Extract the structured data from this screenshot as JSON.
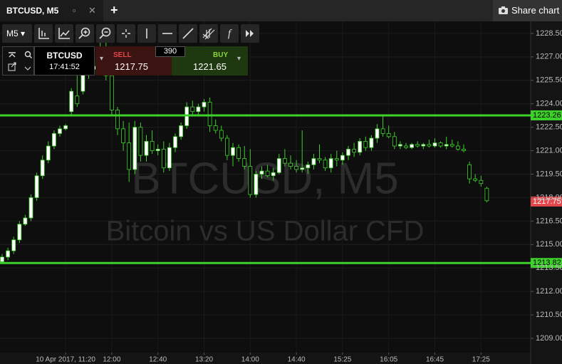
{
  "ui": {
    "tab": "BTCUSD, M5",
    "share": "Share chart",
    "timeframe": "M5",
    "trade": {
      "symbol": "BTCUSD",
      "time": "17:41:52",
      "sell_label": "SELL",
      "sell_price": 1217.75,
      "spread": 390,
      "buy_label": "BUY",
      "buy_price": 1221.65
    }
  },
  "chart_data": {
    "type": "candlestick",
    "watermark": "BTCUSD, M5",
    "watermark_subtitle": "Bitcoin vs US Dollar CFD",
    "categories": [
      null,
      null,
      null,
      null,
      null,
      null,
      null,
      null,
      null,
      null,
      null,
      "10 Apr 2017, 11:20",
      null,
      null,
      null,
      null,
      null,
      null,
      null,
      "12:00",
      null,
      null,
      null,
      null,
      null,
      null,
      null,
      "12:40",
      null,
      null,
      null,
      null,
      null,
      null,
      null,
      "13:20",
      null,
      null,
      null,
      null,
      null,
      null,
      null,
      "14:00",
      null,
      null,
      null,
      null,
      null,
      null,
      null,
      "14:40",
      null,
      null,
      null,
      null,
      null,
      null,
      null,
      "15:25",
      null,
      null,
      null,
      null,
      null,
      null,
      null,
      "16:05",
      null,
      null,
      null,
      null,
      null,
      null,
      null,
      "16:45",
      null,
      null,
      null,
      null,
      null,
      null,
      null,
      "17:25",
      null
    ],
    "open": [
      1213.9,
      1214.2,
      1214.6,
      1215.3,
      1216.3,
      1216.7,
      1218.0,
      1219.4,
      1220.4,
      1221.3,
      1222.1,
      1222.4,
      1223.5,
      1224.5,
      1224.8,
      1225.9,
      1226.2,
      1226.4,
      1227.5,
      1225.8,
      1223.6,
      1222.4,
      1221.5,
      1219.8,
      1222.5,
      1220.7,
      1221.6,
      1221.0,
      1221.1,
      1219.9,
      1221.2,
      1221.9,
      1222.6,
      1223.8,
      1223.5,
      1223.8,
      1224.1,
      1222.6,
      1222.3,
      1221.8,
      1220.7,
      1221.2,
      1220.5,
      1220.0,
      1218.2,
      1219.5,
      1219.7,
      1219.4,
      1219.6,
      1220.5,
      1220.2,
      1220.0,
      1219.8,
      1219.9,
      1220.1,
      1220.5,
      1220.4,
      1219.9,
      1220.5,
      1220.4,
      1220.7,
      1221.1,
      1220.9,
      1221.6,
      1221.2,
      1221.8,
      1222.4,
      1222.1,
      1221.9,
      1221.3,
      1221.3,
      1221.2,
      1221.4,
      1221.3,
      1221.4,
      1221.3,
      1221.5,
      1221.3,
      1221.4,
      1221.3,
      1221.1,
      1220.1,
      1219.2,
      1219.1,
      1218.6
    ],
    "high": [
      1214.4,
      1214.8,
      1215.5,
      1216.5,
      1216.9,
      1218.2,
      1219.6,
      1220.7,
      1221.6,
      1222.3,
      1222.6,
      1222.7,
      1225.0,
      1225.8,
      1226.4,
      1226.6,
      1226.9,
      1228.7,
      1228.3,
      1226.8,
      1223.8,
      1222.9,
      1222.8,
      1222.9,
      1222.8,
      1222.0,
      1222.3,
      1221.4,
      1221.6,
      1221.5,
      1222.1,
      1222.8,
      1224.1,
      1224.2,
      1224.0,
      1224.3,
      1224.4,
      1223.0,
      1222.6,
      1222.0,
      1221.5,
      1221.4,
      1221.3,
      1221.1,
      1219.7,
      1220.0,
      1220.1,
      1219.9,
      1220.8,
      1221.1,
      1220.7,
      1220.4,
      1222.3,
      1220.3,
      1220.8,
      1221.4,
      1220.6,
      1220.8,
      1221.0,
      1220.9,
      1221.3,
      1221.5,
      1221.8,
      1221.9,
      1222.0,
      1222.7,
      1223.3,
      1222.6,
      1222.2,
      1221.6,
      1221.5,
      1221.5,
      1221.6,
      1221.5,
      1221.7,
      1221.8,
      1221.6,
      1221.9,
      1221.7,
      1221.6,
      1221.4,
      1220.3,
      1219.5,
      1219.4,
      1218.7
    ],
    "low": [
      1213.8,
      1214.0,
      1214.4,
      1215.1,
      1216.2,
      1216.5,
      1217.8,
      1219.2,
      1220.2,
      1221.1,
      1221.9,
      1222.3,
      1223.3,
      1223.8,
      1224.6,
      1225.6,
      1225.9,
      1226.3,
      1225.5,
      1223.2,
      1222.0,
      1221.0,
      1219.0,
      1219.5,
      1220.3,
      1220.3,
      1220.8,
      1220.7,
      1219.6,
      1219.7,
      1220.9,
      1221.7,
      1222.4,
      1223.3,
      1223.3,
      1223.5,
      1222.2,
      1222.1,
      1221.6,
      1220.4,
      1220.0,
      1220.3,
      1219.8,
      1218.0,
      1218.0,
      1219.2,
      1219.3,
      1219.1,
      1219.5,
      1220.0,
      1219.8,
      1219.6,
      1219.6,
      1219.5,
      1219.8,
      1220.2,
      1219.7,
      1219.6,
      1220.0,
      1220.1,
      1220.4,
      1220.6,
      1220.7,
      1221.0,
      1221.0,
      1221.5,
      1221.9,
      1221.8,
      1221.1,
      1221.1,
      1221.1,
      1221.1,
      1221.2,
      1221.1,
      1221.2,
      1221.2,
      1221.2,
      1221.1,
      1221.2,
      1221.0,
      1220.9,
      1218.9,
      1219.0,
      1218.7,
      1217.7
    ],
    "close": [
      1214.2,
      1214.6,
      1215.3,
      1216.3,
      1216.7,
      1218.0,
      1219.4,
      1220.4,
      1221.3,
      1222.1,
      1222.4,
      1222.6,
      1224.8,
      1224.0,
      1225.9,
      1226.2,
      1226.4,
      1227.5,
      1225.8,
      1223.6,
      1222.4,
      1221.5,
      1219.8,
      1222.5,
      1220.7,
      1221.6,
      1221.0,
      1221.1,
      1219.9,
      1221.2,
      1221.9,
      1222.6,
      1223.8,
      1223.5,
      1223.8,
      1224.1,
      1222.6,
      1222.3,
      1221.8,
      1220.7,
      1221.2,
      1220.5,
      1220.0,
      1218.2,
      1219.5,
      1219.7,
      1219.4,
      1219.6,
      1220.5,
      1220.2,
      1220.0,
      1219.8,
      1219.9,
      1220.1,
      1220.5,
      1220.4,
      1219.9,
      1220.5,
      1220.4,
      1220.7,
      1221.1,
      1220.9,
      1221.6,
      1221.2,
      1221.8,
      1222.4,
      1222.1,
      1221.9,
      1221.3,
      1221.4,
      1221.2,
      1221.4,
      1221.3,
      1221.4,
      1221.3,
      1221.5,
      1221.3,
      1221.4,
      1221.3,
      1221.1,
      1221.0,
      1219.2,
      1219.1,
      1218.9,
      1217.8
    ],
    "up_color": "#ffffff",
    "down_color": "#0b0b0b",
    "edge_color": "#3fd12b",
    "levels": [
      {
        "value": 1223.26,
        "color": "#3fd12b"
      },
      {
        "value": 1213.82,
        "color": "#3fd12b"
      }
    ],
    "last_price": 1217.75,
    "last_price_color": "#e2474b",
    "ylim": [
      1208.09,
      1229.27
    ],
    "yticks": [
      {
        "value": 1228.5,
        "label": "1228.50"
      },
      {
        "value": 1227,
        "label": "1227.00"
      },
      {
        "value": 1225.5,
        "label": "1225.50"
      },
      {
        "value": 1224,
        "label": "1224.00"
      },
      {
        "value": 1222.5,
        "label": "1222.50"
      },
      {
        "value": 1221,
        "label": "1221.00"
      },
      {
        "value": 1219.5,
        "label": "1219.50"
      },
      {
        "value": 1218,
        "label": "1218.00"
      },
      {
        "value": 1216.5,
        "label": "1216.50"
      },
      {
        "value": 1215,
        "label": "1215.00"
      },
      {
        "value": 1213.5,
        "label": "1213.50"
      },
      {
        "value": 1212,
        "label": "1212.00"
      },
      {
        "value": 1210.5,
        "label": "1210.50"
      },
      {
        "value": 1209,
        "label": "1209.00"
      }
    ],
    "grid": true
  }
}
